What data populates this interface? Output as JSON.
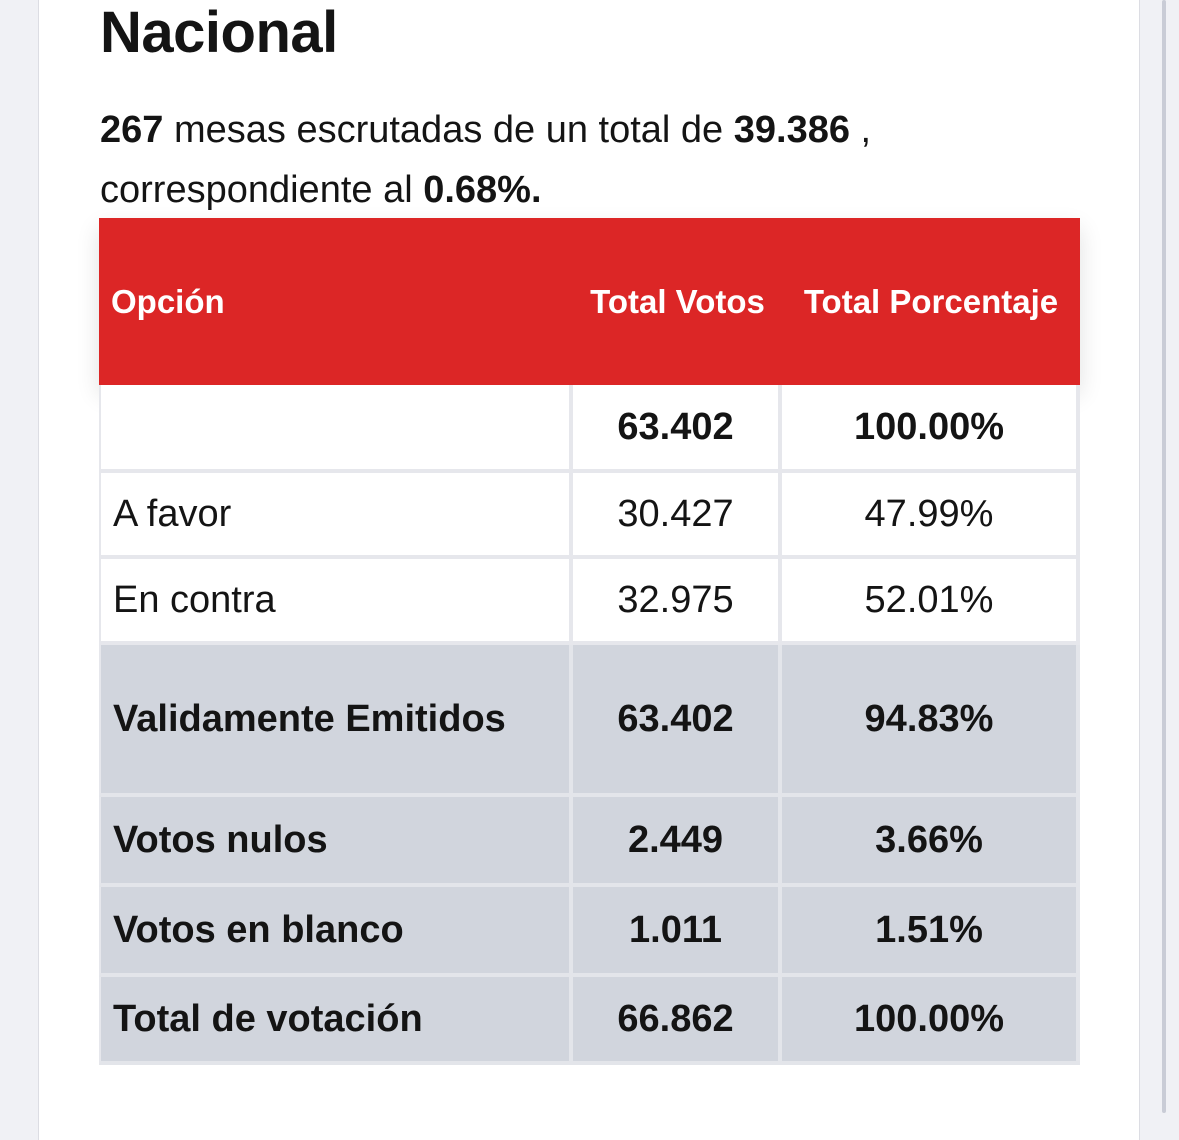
{
  "title": "Nacional",
  "summary": {
    "mesas_escrutadas": "267",
    "text_mid": " mesas escrutadas de un total de ",
    "mesas_total": "39.386",
    "text_sep": " ,",
    "text_corr": "correspondiente al ",
    "porcentaje": "0.68%."
  },
  "table": {
    "headers": {
      "opcion": "Opción",
      "total_votos": "Total Votos",
      "total_porcentaje": "Total Porcentaje"
    },
    "rows": [
      {
        "opcion": "",
        "votos": "63.402",
        "porcentaje": "100.00%"
      },
      {
        "opcion": "A favor",
        "votos": "30.427",
        "porcentaje": "47.99%"
      },
      {
        "opcion": "En contra",
        "votos": "32.975",
        "porcentaje": "52.01%"
      },
      {
        "opcion": "Validamente Emitidos",
        "votos": "63.402",
        "porcentaje": "94.83%"
      },
      {
        "opcion": "Votos nulos",
        "votos": "2.449",
        "porcentaje": "3.66%"
      },
      {
        "opcion": "Votos en blanco",
        "votos": "1.011",
        "porcentaje": "1.51%"
      },
      {
        "opcion": "Total de votación",
        "votos": "66.862",
        "porcentaje": "100.00%"
      }
    ]
  },
  "colors": {
    "header_red": "#dc2626",
    "summary_row_gray": "#d1d5dd",
    "text": "#141414"
  }
}
